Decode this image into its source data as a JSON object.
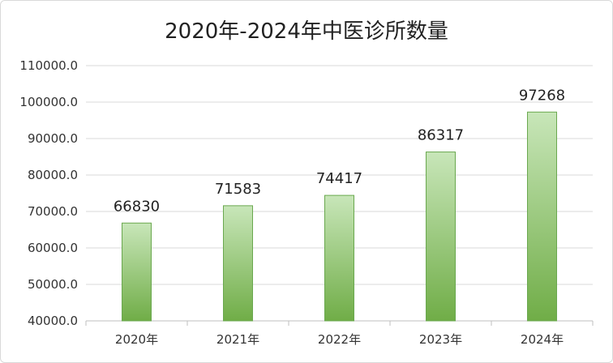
{
  "chart_data": {
    "type": "bar",
    "title": "2020年-2024年中医诊所数量",
    "categories": [
      "2020年",
      "2021年",
      "2022年",
      "2023年",
      "2024年"
    ],
    "values": [
      66830,
      71583,
      74417,
      86317,
      97268
    ],
    "data_labels": [
      "66830",
      "71583",
      "74417",
      "86317",
      "97268"
    ],
    "ylim": [
      40000,
      110000
    ],
    "yticks": [
      "40000.0",
      "50000.0",
      "60000.0",
      "70000.0",
      "80000.0",
      "90000.0",
      "100000.0",
      "110000.0"
    ],
    "ytick_values": [
      40000,
      50000,
      60000,
      70000,
      80000,
      90000,
      100000,
      110000
    ],
    "grid": true,
    "legend": "none",
    "colors": {
      "bar_top": "#c8e6b9",
      "bar_bottom": "#70ad47",
      "bar_stroke": "#6aa84f",
      "grid": "#d9d9d9"
    }
  }
}
